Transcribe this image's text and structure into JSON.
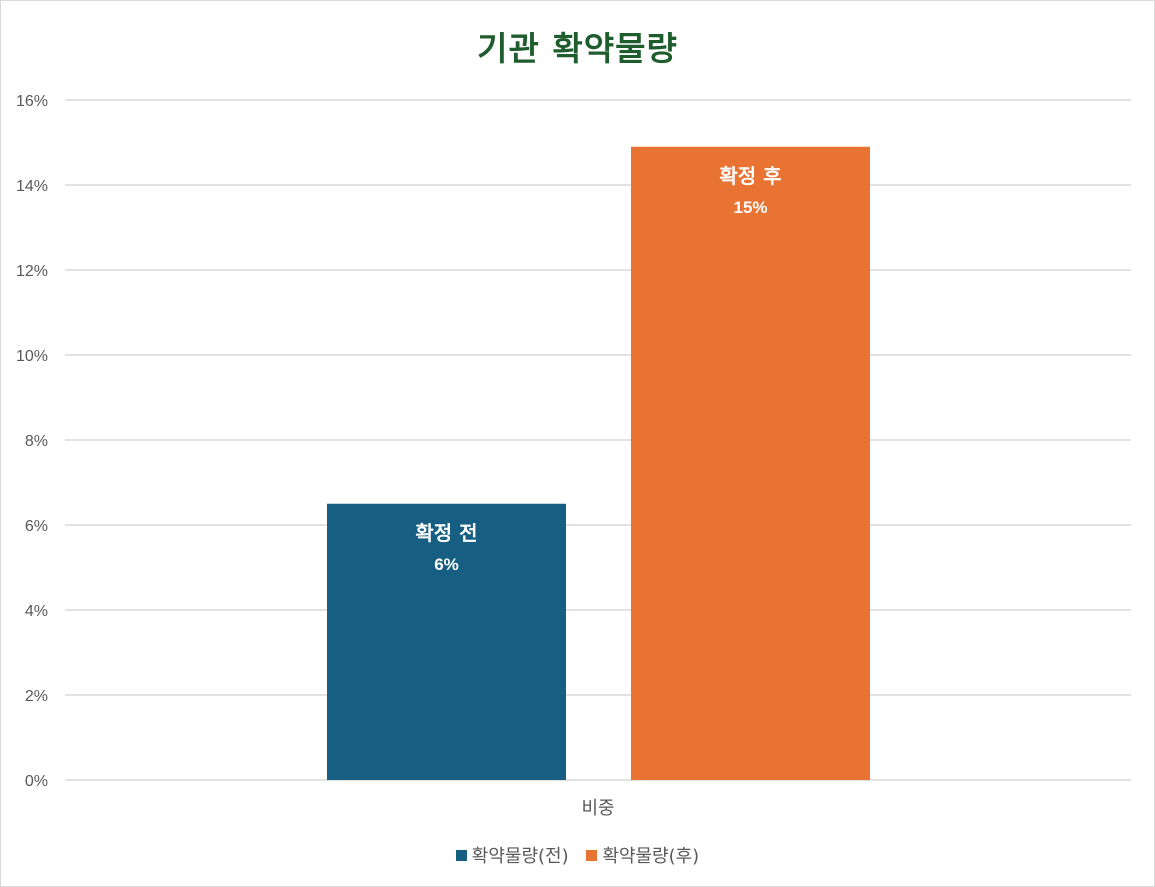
{
  "colors": {
    "title": "#1f5c2e",
    "series_before": "#165f83",
    "series_after": "#e87333",
    "grid": "#d9d9d9",
    "axis_text": "#595959"
  },
  "chart_data": {
    "type": "bar",
    "title": "기관 확약물량",
    "categories": [
      "비중"
    ],
    "series": [
      {
        "name": "확약물량(전)",
        "bar_label": "확정 전",
        "value_label": "6%",
        "values": [
          0.065
        ],
        "color": "#165f83"
      },
      {
        "name": "확약물량(후)",
        "bar_label": "확정 후",
        "value_label": "15%",
        "values": [
          0.149
        ],
        "color": "#e87333"
      }
    ],
    "ylim": [
      0,
      0.16
    ],
    "yticks": [
      "0%",
      "2%",
      "4%",
      "6%",
      "8%",
      "10%",
      "12%",
      "14%",
      "16%"
    ],
    "grid": true,
    "legend_position": "bottom"
  }
}
